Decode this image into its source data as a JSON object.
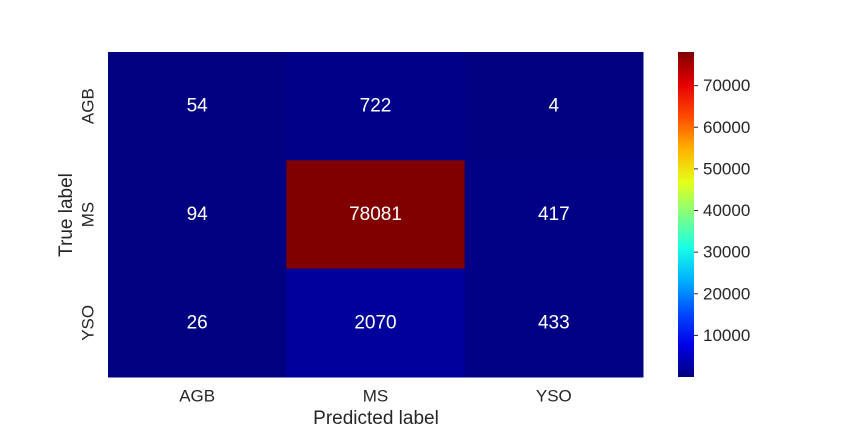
{
  "chart_data": {
    "type": "heatmap",
    "title": "",
    "xlabel": "Predicted label",
    "ylabel": "True label",
    "x_categories": [
      "AGB",
      "MS",
      "YSO"
    ],
    "y_categories": [
      "AGB",
      "MS",
      "YSO"
    ],
    "values": [
      [
        54,
        722,
        4
      ],
      [
        94,
        78081,
        417
      ],
      [
        26,
        2070,
        433
      ]
    ],
    "cell_labels": [
      [
        "54",
        "722",
        "4"
      ],
      [
        "94",
        "78081",
        "417"
      ],
      [
        "26",
        "2070",
        "433"
      ]
    ],
    "colormap": "jet",
    "vmin": 4,
    "vmax": 78081,
    "colorbar_ticks": [
      10000,
      20000,
      30000,
      40000,
      50000,
      60000,
      70000
    ],
    "colorbar_tick_labels": [
      "10000",
      "20000",
      "30000",
      "40000",
      "50000",
      "60000",
      "70000"
    ],
    "grid": false,
    "annotation_color": "#ffffff",
    "axis_text_color": "#262626"
  }
}
